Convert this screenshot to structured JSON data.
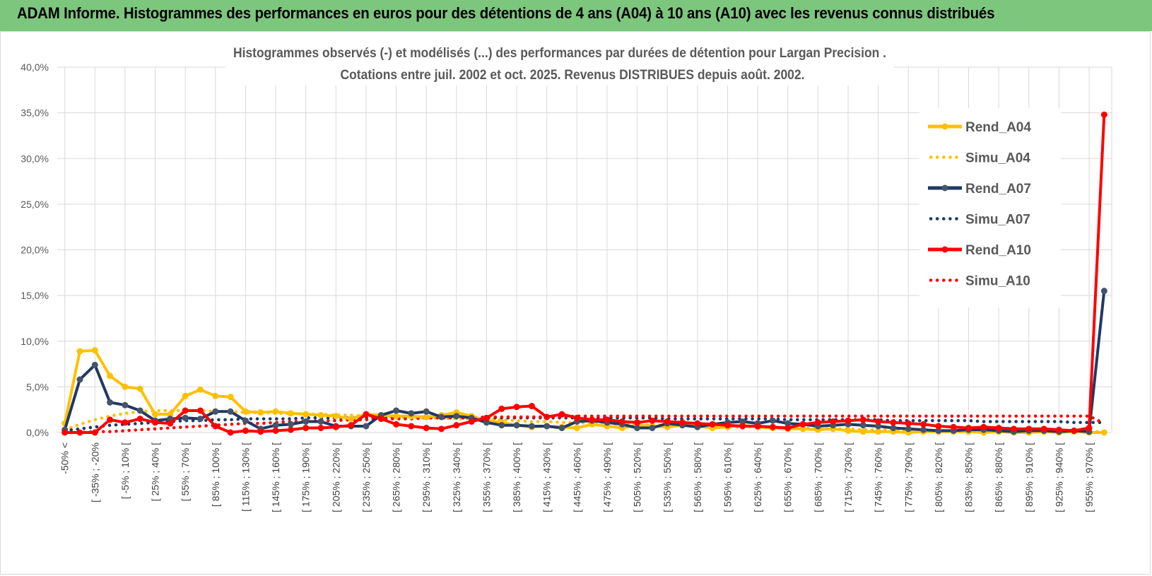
{
  "header": {
    "title": "ADAM Informe. Histogrammes des performances en euros pour des détentions de 4 ans (A04) à 10 ans (A10) avec les revenus connus distribués"
  },
  "colors": {
    "banner": "#7dc67d",
    "A04": "#ffc000",
    "A07": "#203864",
    "A07_marker": "#44546a",
    "A10": "#ff0000",
    "grid": "#d9d9d9"
  },
  "chart_data": {
    "type": "line",
    "title_line1": "Histogrammes observés (-) et modélisés (...) des performances par durées de détention pour Largan Precision .",
    "title_line2": "Cotations entre juil. 2002 et oct. 2025. Revenus DISTRIBUES depuis août. 2002.",
    "ylim": [
      0,
      40
    ],
    "yticks": [
      "0,0%",
      "5,0%",
      "10,0%",
      "15,0%",
      "20,0%",
      "25,0%",
      "30,0%",
      "35,0%",
      "40,0%"
    ],
    "x_tick_labels": [
      "-50% <",
      "[ -35% ; -20%",
      "[ -5% ; 10% [",
      "[ 25% ; 40% [",
      "[ 55% ; 70% [",
      "[ 85% ; 100% [",
      "[ 115% ; 130% [",
      "[ 145% ; 160% [",
      "[ 175% ; 190% [",
      "[ 205% ; 220% [",
      "[ 235% ; 250% [",
      "[ 265% ; 280% [",
      "[ 295% ; 310% [",
      "[ 325% ; 340% [",
      "[ 355% ; 370% [",
      "[ 385% ; 400% [",
      "[ 415% ; 430% [",
      "[ 445% ; 460% [",
      "[ 475% ; 490% [",
      "[ 505% ; 520% [",
      "[ 535% ; 550% [",
      "[ 565% ; 580% [",
      "[ 595% ; 610% [",
      "[ 625% ; 640% [",
      "[ 655% ; 670% [",
      "[ 685% ; 700% [",
      "[ 715% ; 730% [",
      "[ 745% ; 760% [",
      "[ 775% ; 790% [",
      "[ 805% ; 820% [",
      "[ 835% ; 850% [",
      "[ 865% ; 880% [",
      "[ 895% ; 910% [",
      "[ 925% ; 940% [",
      "[ 955% ; 970% ["
    ],
    "n_categories": 70,
    "legend": [
      "Rend_A04",
      "Simu_A04",
      "Rend_A07",
      "Simu_A07",
      "Rend_A10",
      "Simu_A10"
    ],
    "series": [
      {
        "name": "Rend_A04",
        "style": "solid",
        "values": [
          1.0,
          8.9,
          9.0,
          6.2,
          5.0,
          4.8,
          2.0,
          2.0,
          4.0,
          4.7,
          4.0,
          3.9,
          2.3,
          2.2,
          2.3,
          2.1,
          2.0,
          1.9,
          1.8,
          1.5,
          2.0,
          1.9,
          1.8,
          1.8,
          1.7,
          1.9,
          2.2,
          1.8,
          1.3,
          1.1,
          0.8,
          0.6,
          0.7,
          0.6,
          0.5,
          0.9,
          0.7,
          0.5,
          0.8,
          0.7,
          0.6,
          0.8,
          0.7,
          0.5,
          0.6,
          0.8,
          0.6,
          0.5,
          0.4,
          0.4,
          0.3,
          0.4,
          0.2,
          0.1,
          0.1,
          0.1,
          0.0,
          0.1,
          0.1,
          0.1,
          0.1,
          0.0,
          0.1,
          0.0,
          0.0,
          0.1,
          0.0,
          0.1,
          0.0,
          0.0
        ]
      },
      {
        "name": "Simu_A04",
        "style": "dotted",
        "values": [
          0.3,
          0.9,
          1.4,
          1.8,
          2.1,
          2.3,
          2.4,
          2.4,
          2.4,
          2.4,
          2.3,
          2.3,
          2.2,
          2.2,
          2.1,
          2.1,
          2.0,
          2.0,
          1.9,
          1.9,
          1.8,
          1.8,
          1.7,
          1.7,
          1.6,
          1.6,
          1.5,
          1.5,
          1.4,
          1.4,
          1.3,
          1.2,
          1.2,
          1.1,
          1.1,
          1.0,
          1.0,
          0.9,
          0.9,
          0.8,
          0.8,
          0.8,
          0.7,
          0.7,
          0.6,
          0.6,
          0.6,
          0.5,
          0.5,
          0.5,
          0.4,
          0.4,
          0.4,
          0.3,
          0.3,
          0.3,
          0.3,
          0.2,
          0.2,
          0.2,
          0.2,
          0.2,
          0.1,
          0.1,
          0.1,
          0.1,
          0.1,
          0.1,
          0.1,
          0.1
        ]
      },
      {
        "name": "Rend_A07",
        "style": "solid",
        "values": [
          0.3,
          5.8,
          7.4,
          3.3,
          3.0,
          2.4,
          1.3,
          1.5,
          1.6,
          1.5,
          2.3,
          2.3,
          1.3,
          0.4,
          0.8,
          0.9,
          1.2,
          1.2,
          0.7,
          0.7,
          0.7,
          1.9,
          2.4,
          2.1,
          2.3,
          1.7,
          1.8,
          1.6,
          1.1,
          0.8,
          0.8,
          0.7,
          0.7,
          0.5,
          1.2,
          1.3,
          1.1,
          0.9,
          0.5,
          0.5,
          1.0,
          0.8,
          0.6,
          0.9,
          1.1,
          1.2,
          1.0,
          1.3,
          1.0,
          0.9,
          0.7,
          0.8,
          0.9,
          0.8,
          0.7,
          0.5,
          0.4,
          0.3,
          0.2,
          0.2,
          0.3,
          0.3,
          0.2,
          0.1,
          0.2,
          0.2,
          0.1,
          0.2,
          0.1,
          15.5
        ]
      },
      {
        "name": "Simu_A07",
        "style": "dotted",
        "values": [
          0.2,
          0.4,
          0.6,
          0.8,
          0.9,
          1.0,
          1.1,
          1.2,
          1.3,
          1.3,
          1.4,
          1.4,
          1.5,
          1.5,
          1.5,
          1.5,
          1.6,
          1.6,
          1.6,
          1.6,
          1.6,
          1.6,
          1.6,
          1.6,
          1.6,
          1.6,
          1.6,
          1.6,
          1.6,
          1.6,
          1.6,
          1.6,
          1.6,
          1.6,
          1.6,
          1.6,
          1.6,
          1.6,
          1.6,
          1.6,
          1.5,
          1.5,
          1.5,
          1.5,
          1.5,
          1.5,
          1.5,
          1.5,
          1.4,
          1.4,
          1.4,
          1.4,
          1.4,
          1.4,
          1.4,
          1.3,
          1.3,
          1.3,
          1.3,
          1.3,
          1.3,
          1.2,
          1.2,
          1.2,
          1.2,
          1.2,
          1.2,
          1.1,
          1.1,
          1.1
        ]
      },
      {
        "name": "Rend_A10",
        "style": "solid",
        "values": [
          0.0,
          0.0,
          0.0,
          1.4,
          1.1,
          1.5,
          1.1,
          1.0,
          2.4,
          2.4,
          0.7,
          0.0,
          0.2,
          0.1,
          0.2,
          0.3,
          0.5,
          0.5,
          0.6,
          0.8,
          2.0,
          1.5,
          0.9,
          0.7,
          0.5,
          0.4,
          0.8,
          1.2,
          1.6,
          2.6,
          2.8,
          2.9,
          1.7,
          2.0,
          1.6,
          1.4,
          1.4,
          1.2,
          1.1,
          1.3,
          1.2,
          1.1,
          1.0,
          0.9,
          0.8,
          0.7,
          0.7,
          0.6,
          0.5,
          0.9,
          1.1,
          1.2,
          1.3,
          1.4,
          1.2,
          1.1,
          1.0,
          0.9,
          0.7,
          0.6,
          0.5,
          0.6,
          0.5,
          0.4,
          0.4,
          0.4,
          0.3,
          0.2,
          0.5,
          34.8
        ]
      },
      {
        "name": "Simu_A10",
        "style": "dotted",
        "values": [
          0.0,
          0.0,
          0.1,
          0.1,
          0.2,
          0.3,
          0.4,
          0.5,
          0.6,
          0.7,
          0.8,
          0.9,
          1.0,
          1.0,
          1.1,
          1.2,
          1.2,
          1.3,
          1.3,
          1.4,
          1.4,
          1.5,
          1.5,
          1.5,
          1.6,
          1.6,
          1.6,
          1.6,
          1.7,
          1.7,
          1.7,
          1.7,
          1.7,
          1.7,
          1.8,
          1.8,
          1.8,
          1.8,
          1.8,
          1.8,
          1.8,
          1.8,
          1.8,
          1.8,
          1.8,
          1.8,
          1.8,
          1.8,
          1.8,
          1.8,
          1.8,
          1.8,
          1.8,
          1.8,
          1.8,
          1.8,
          1.8,
          1.8,
          1.8,
          1.8,
          1.8,
          1.8,
          1.8,
          1.8,
          1.8,
          1.8,
          1.8,
          1.8,
          1.8,
          1.0
        ]
      }
    ]
  }
}
